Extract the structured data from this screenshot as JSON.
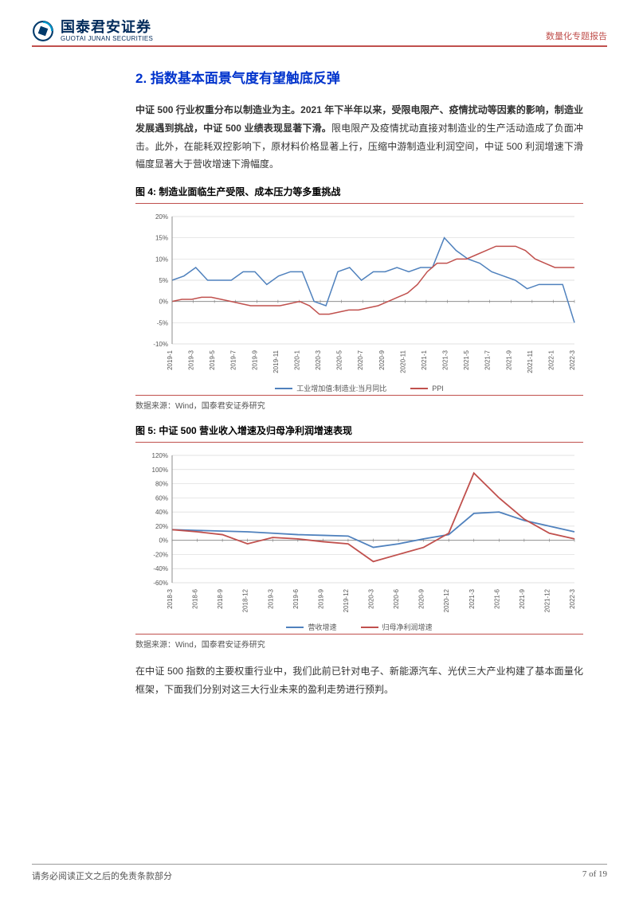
{
  "header": {
    "logo_cn": "国泰君安证券",
    "logo_en": "GUOTAI JUNAN SECURITIES",
    "report_type": "数量化专题报告",
    "logo_ring_color": "#003a6b",
    "logo_cube_color": "#0099cc"
  },
  "section": {
    "title": "2.  指数基本面景气度有望触底反弹",
    "para1_bold": "中证 500 行业权重分布以制造业为主。2021 年下半年以来，受限电限产、疫情扰动等因素的影响，制造业发展遇到挑战，中证 500 业绩表现显著下滑。",
    "para1_rest": "限电限产及疫情扰动直接对制造业的生产活动造成了负面冲击。此外，在能耗双控影响下，原材料价格显著上行，压缩中游制造业利润空间，中证 500 利润增速下滑幅度显著大于营收增速下滑幅度。",
    "para2": "在中证 500 指数的主要权重行业中，我们此前已针对电子、新能源汽车、光伏三大产业构建了基本面量化框架，下面我们分别对这三大行业未来的盈利走势进行预判。"
  },
  "chart1": {
    "type": "line",
    "title": "图 4: 制造业面临生产受限、成本压力等多重挑战",
    "source": "数据来源：Wind，国泰君安证券研究",
    "background_color": "#ffffff",
    "grid_color": "#d9d9d9",
    "axis_color": "#808080",
    "label_fontsize": 8,
    "ylim": [
      -10,
      20
    ],
    "ytick_step": 5,
    "yticks": [
      "-10%",
      "-5%",
      "0%",
      "5%",
      "10%",
      "15%",
      "20%"
    ],
    "x_labels": [
      "2019-1",
      "2019-3",
      "2019-5",
      "2019-7",
      "2019-9",
      "2019-11",
      "2020-1",
      "2020-3",
      "2020-5",
      "2020-7",
      "2020-9",
      "2020-11",
      "2021-1",
      "2021-3",
      "2021-5",
      "2021-7",
      "2021-9",
      "2021-11",
      "2022-1",
      "2022-3"
    ],
    "series": [
      {
        "name": "工业增加值:制造业:当月同比",
        "color": "#4f81bd",
        "line_width": 1.5,
        "values": [
          5,
          6,
          8,
          5,
          5,
          5,
          7,
          7,
          4,
          6,
          7,
          7,
          0,
          -1,
          7,
          8,
          5,
          7,
          7,
          8,
          7,
          8,
          8,
          15,
          12,
          10,
          9,
          7,
          6,
          5,
          3,
          4,
          4,
          4,
          -5
        ]
      },
      {
        "name": "PPI",
        "color": "#c0504d",
        "line_width": 1.5,
        "values": [
          0,
          0.5,
          0.5,
          1,
          1,
          0.5,
          0,
          -0.5,
          -1,
          -1,
          -1,
          -1,
          -0.5,
          0,
          -1,
          -3,
          -3,
          -2.5,
          -2,
          -2,
          -1.5,
          -1,
          0,
          1,
          2,
          4,
          7,
          9,
          9,
          10,
          10,
          11,
          12,
          13,
          13,
          13,
          12,
          10,
          9,
          8,
          8,
          8
        ]
      }
    ],
    "legend": [
      {
        "label": "工业增加值:制造业:当月同比",
        "color": "#4f81bd"
      },
      {
        "label": "PPI",
        "color": "#c0504d"
      }
    ]
  },
  "chart2": {
    "type": "line",
    "title": "图 5: 中证 500 营业收入增速及归母净利润增速表现",
    "source": "数据来源：Wind，国泰君安证券研究",
    "background_color": "#ffffff",
    "grid_color": "#d9d9d9",
    "axis_color": "#808080",
    "label_fontsize": 8,
    "ylim": [
      -60,
      120
    ],
    "ytick_step": 20,
    "yticks": [
      "-60%",
      "-40%",
      "-20%",
      "0%",
      "20%",
      "40%",
      "60%",
      "80%",
      "100%",
      "120%"
    ],
    "x_labels": [
      "2018-3",
      "2018-6",
      "2018-9",
      "2018-12",
      "2019-3",
      "2019-6",
      "2019-9",
      "2019-12",
      "2020-3",
      "2020-6",
      "2020-9",
      "2020-12",
      "2021-3",
      "2021-6",
      "2021-9",
      "2021-12",
      "2022-3"
    ],
    "series": [
      {
        "name": "营收增速",
        "color": "#4f81bd",
        "line_width": 1.8,
        "values": [
          15,
          14,
          13,
          12,
          10,
          8,
          7,
          6,
          -10,
          -5,
          2,
          8,
          38,
          40,
          28,
          20,
          12
        ]
      },
      {
        "name": "归母净利润增速",
        "color": "#c0504d",
        "line_width": 1.8,
        "values": [
          15,
          12,
          8,
          -5,
          4,
          2,
          -2,
          -5,
          -30,
          -20,
          -10,
          10,
          95,
          60,
          30,
          10,
          2
        ]
      }
    ],
    "legend": [
      {
        "label": "营收增速",
        "color": "#4f81bd"
      },
      {
        "label": "归母净利润增速",
        "color": "#c0504d"
      }
    ]
  },
  "footer": {
    "left": "请务必阅读正文之后的免责条款部分",
    "right": "7 of 19"
  }
}
